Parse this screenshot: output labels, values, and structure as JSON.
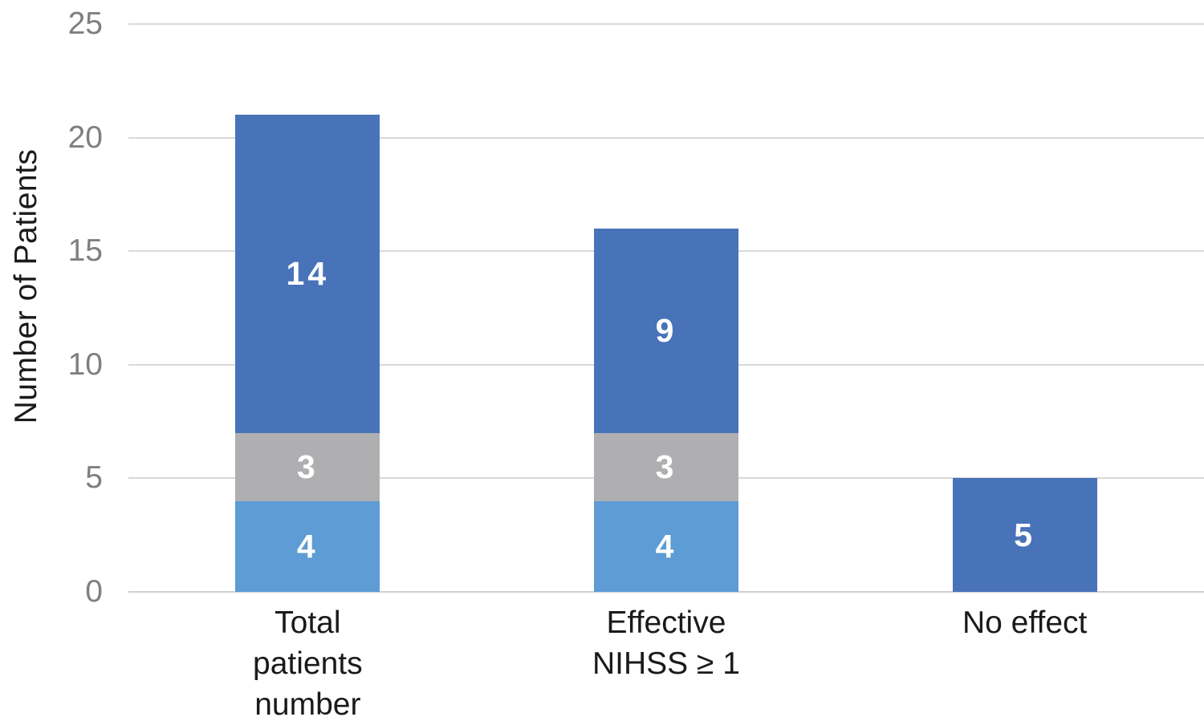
{
  "chart_data": {
    "type": "bar",
    "stacked": true,
    "title": "",
    "xlabel": "",
    "ylabel": "Number of Patients",
    "ylim": [
      0,
      25
    ],
    "yticks": [
      0,
      5,
      10,
      15,
      20,
      25
    ],
    "grid": "horizontal-only",
    "legend": "none",
    "categories": [
      [
        "Total",
        "patients",
        "number"
      ],
      [
        "Effective",
        "NIHSS ≥ 1"
      ],
      [
        "No effect"
      ]
    ],
    "series": [
      {
        "name": "bottom-light-blue",
        "color": "#5D9CD4",
        "values": [
          4,
          4,
          0
        ]
      },
      {
        "name": "middle-gray",
        "color": "#AFAFB2",
        "values": [
          3,
          3,
          0
        ]
      },
      {
        "name": "top-dark-blue",
        "color": "#4973B9",
        "values": [
          14,
          9,
          5
        ]
      }
    ],
    "bar_totals": [
      21,
      16,
      5
    ],
    "data_label_color": "#FFFFFF"
  },
  "colors": {
    "background": "#FFFFFF",
    "gridline": "#D9D9D9",
    "axis_baseline": "#CFCFCF",
    "tick_label": "#7F7F7F",
    "text": "#1A1A1A"
  }
}
